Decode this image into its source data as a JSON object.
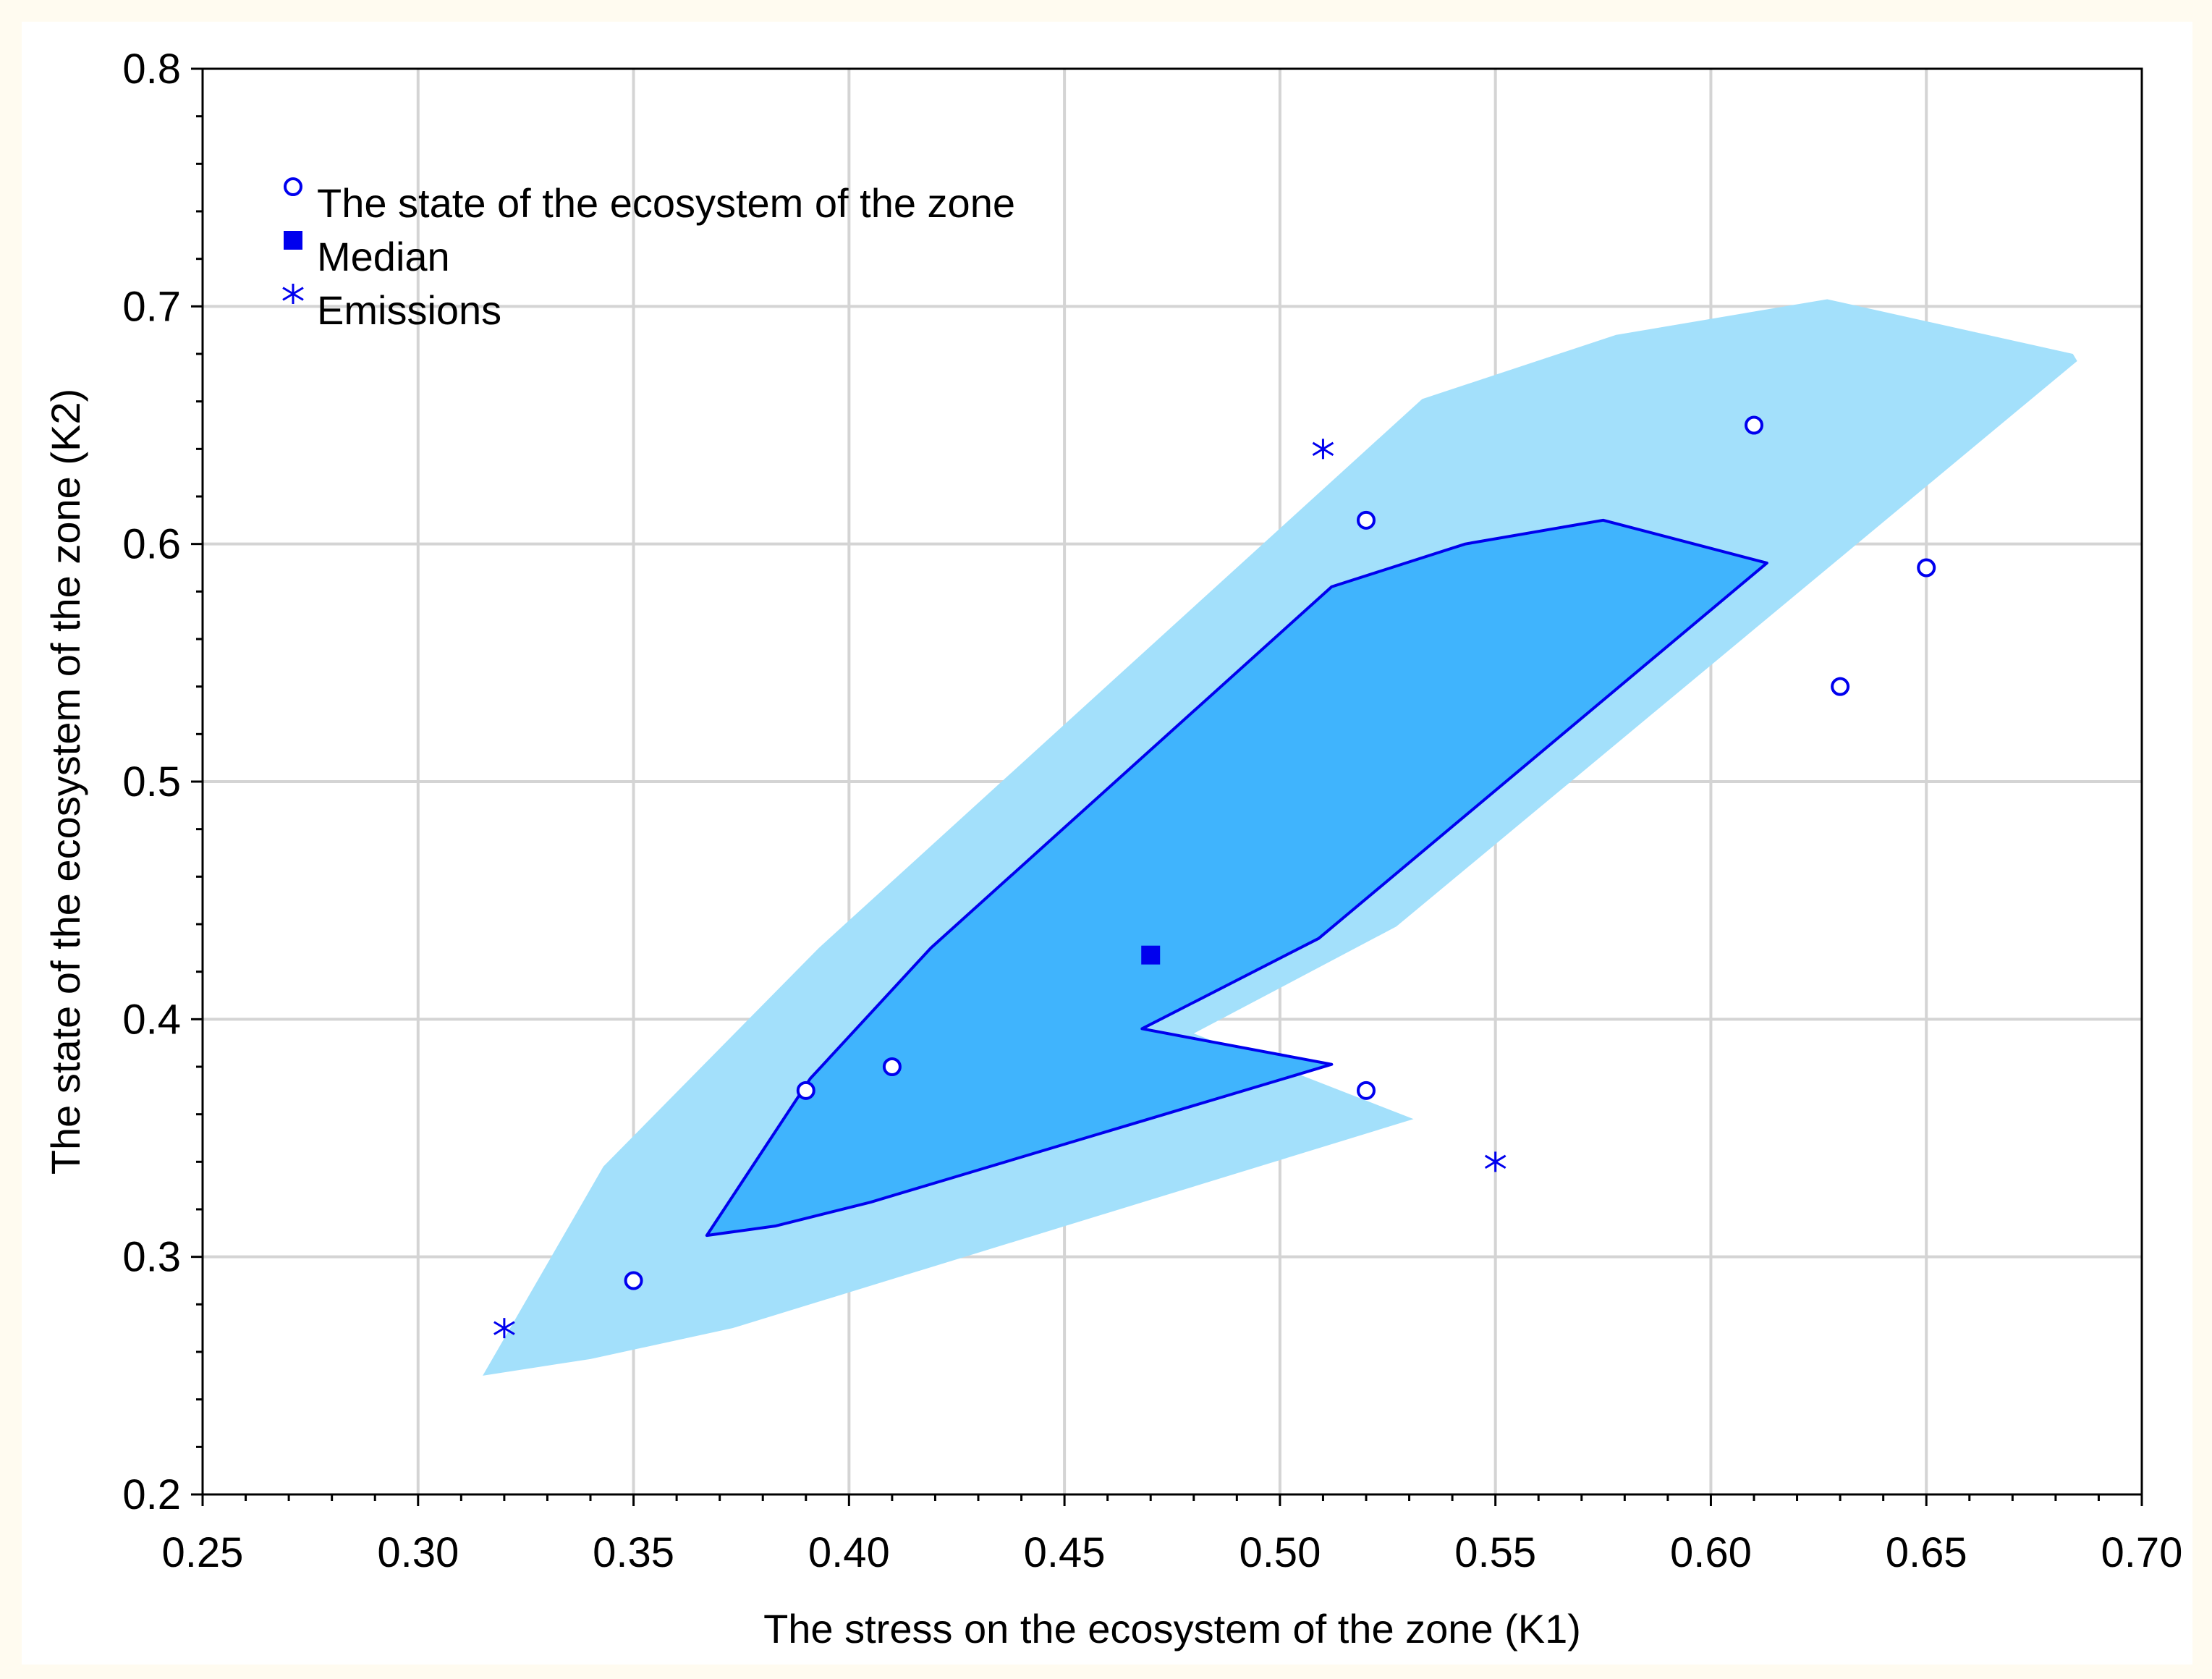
{
  "chart_data": {
    "type": "scatter",
    "title": "",
    "xlabel": "The stress on the ecosystem of the zone (K1)",
    "ylabel": "The state of the ecosystem of the zone (K2)",
    "xlim": [
      0.25,
      0.7
    ],
    "ylim": [
      0.2,
      0.8
    ],
    "x_ticks": [
      0.25,
      0.3,
      0.35,
      0.4,
      0.45,
      0.5,
      0.55,
      0.6,
      0.65,
      0.7
    ],
    "x_tick_labels": [
      "0.25",
      "0.30",
      "0.35",
      "0.40",
      "0.45",
      "0.50",
      "0.55",
      "0.60",
      "0.65",
      "0.70"
    ],
    "y_ticks": [
      0.2,
      0.3,
      0.4,
      0.5,
      0.6,
      0.7,
      0.8
    ],
    "y_tick_labels": [
      "0.2",
      "0.3",
      "0.4",
      "0.5",
      "0.6",
      "0.7",
      "0.8"
    ],
    "grid": true,
    "legend_position": "top-left",
    "series": [
      {
        "name": "The state of the ecosystem of the zone",
        "marker": "open-circle",
        "color": "#0000ee",
        "points": [
          [
            0.35,
            0.29
          ],
          [
            0.39,
            0.37
          ],
          [
            0.41,
            0.38
          ],
          [
            0.52,
            0.61
          ],
          [
            0.52,
            0.37
          ],
          [
            0.61,
            0.65
          ],
          [
            0.63,
            0.54
          ],
          [
            0.65,
            0.59
          ]
        ]
      },
      {
        "name": "Median",
        "marker": "filled-square",
        "color": "#0000ee",
        "points": [
          [
            0.47,
            0.427
          ]
        ]
      },
      {
        "name": "Emissions",
        "marker": "asterisk",
        "color": "#0000ee",
        "points": [
          [
            0.32,
            0.27
          ],
          [
            0.51,
            0.64
          ],
          [
            0.55,
            0.34
          ]
        ]
      }
    ],
    "regions": [
      {
        "name": "outer-envelope",
        "fill": "#a3e0fb",
        "stroke": "none",
        "points": [
          [
            0.315,
            0.25
          ],
          [
            0.34,
            0.257
          ],
          [
            0.373,
            0.27
          ],
          [
            0.531,
            0.358
          ],
          [
            0.48,
            0.394
          ],
          [
            0.527,
            0.439
          ],
          [
            0.685,
            0.677
          ],
          [
            0.684,
            0.68
          ],
          [
            0.627,
            0.703
          ],
          [
            0.578,
            0.688
          ],
          [
            0.533,
            0.661
          ],
          [
            0.393,
            0.43
          ],
          [
            0.343,
            0.338
          ]
        ]
      },
      {
        "name": "inner-envelope",
        "fill": "#40b4fd",
        "stroke": "#0000ee",
        "points": [
          [
            0.367,
            0.309
          ],
          [
            0.383,
            0.313
          ],
          [
            0.405,
            0.323
          ],
          [
            0.512,
            0.381
          ],
          [
            0.468,
            0.396
          ],
          [
            0.509,
            0.434
          ],
          [
            0.613,
            0.592
          ],
          [
            0.575,
            0.61
          ],
          [
            0.543,
            0.6
          ],
          [
            0.512,
            0.582
          ],
          [
            0.419,
            0.43
          ],
          [
            0.391,
            0.375
          ]
        ]
      }
    ]
  }
}
